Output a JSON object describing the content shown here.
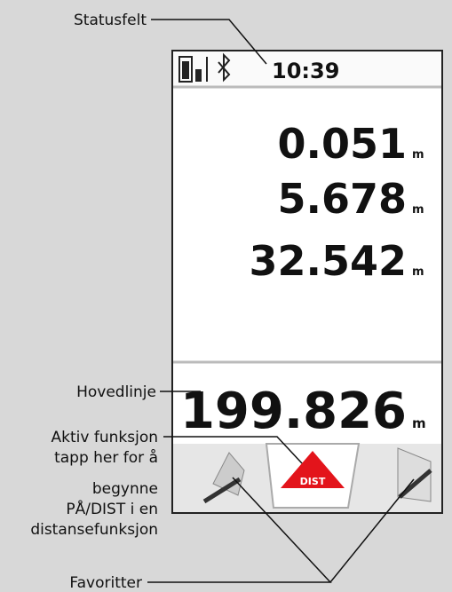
{
  "callouts": {
    "status": "Statusfelt",
    "main_line": "Hovedlinje",
    "active": [
      "Aktiv funksjon",
      "tapp her for å",
      "begynne",
      "PÅ/DIST i en",
      "distansefunksjon"
    ],
    "favorites": "Favoritter"
  },
  "screen": {
    "time": "10:39",
    "readings": [
      "0.051",
      "5.678",
      "32.542"
    ],
    "main": "199.826",
    "unit": "m",
    "active_label": "DIST"
  }
}
